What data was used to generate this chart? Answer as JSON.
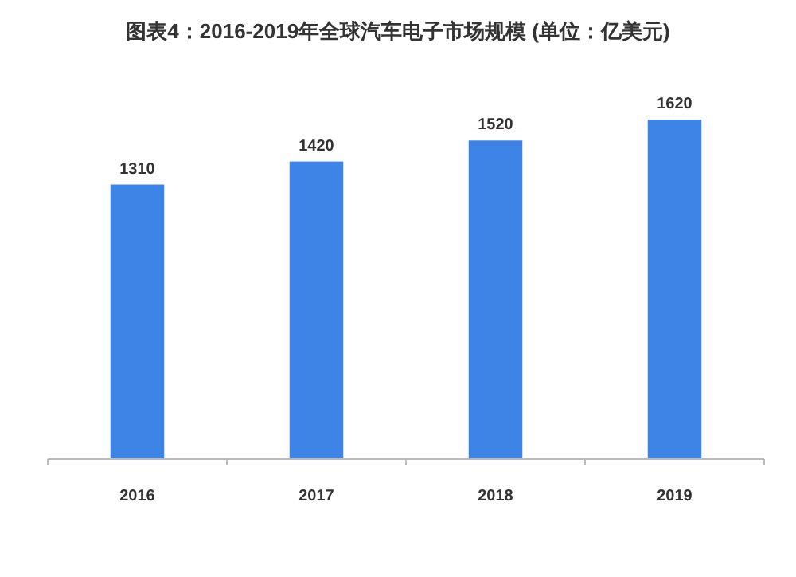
{
  "chart_data": {
    "type": "bar",
    "title": "图表4：2016-2019年全球汽车电子市场规模 (单位：亿美元)",
    "categories": [
      "2016",
      "2017",
      "2018",
      "2019"
    ],
    "values": [
      1310,
      1420,
      1520,
      1620
    ],
    "color": "#3e84e6",
    "data_labels": true
  }
}
